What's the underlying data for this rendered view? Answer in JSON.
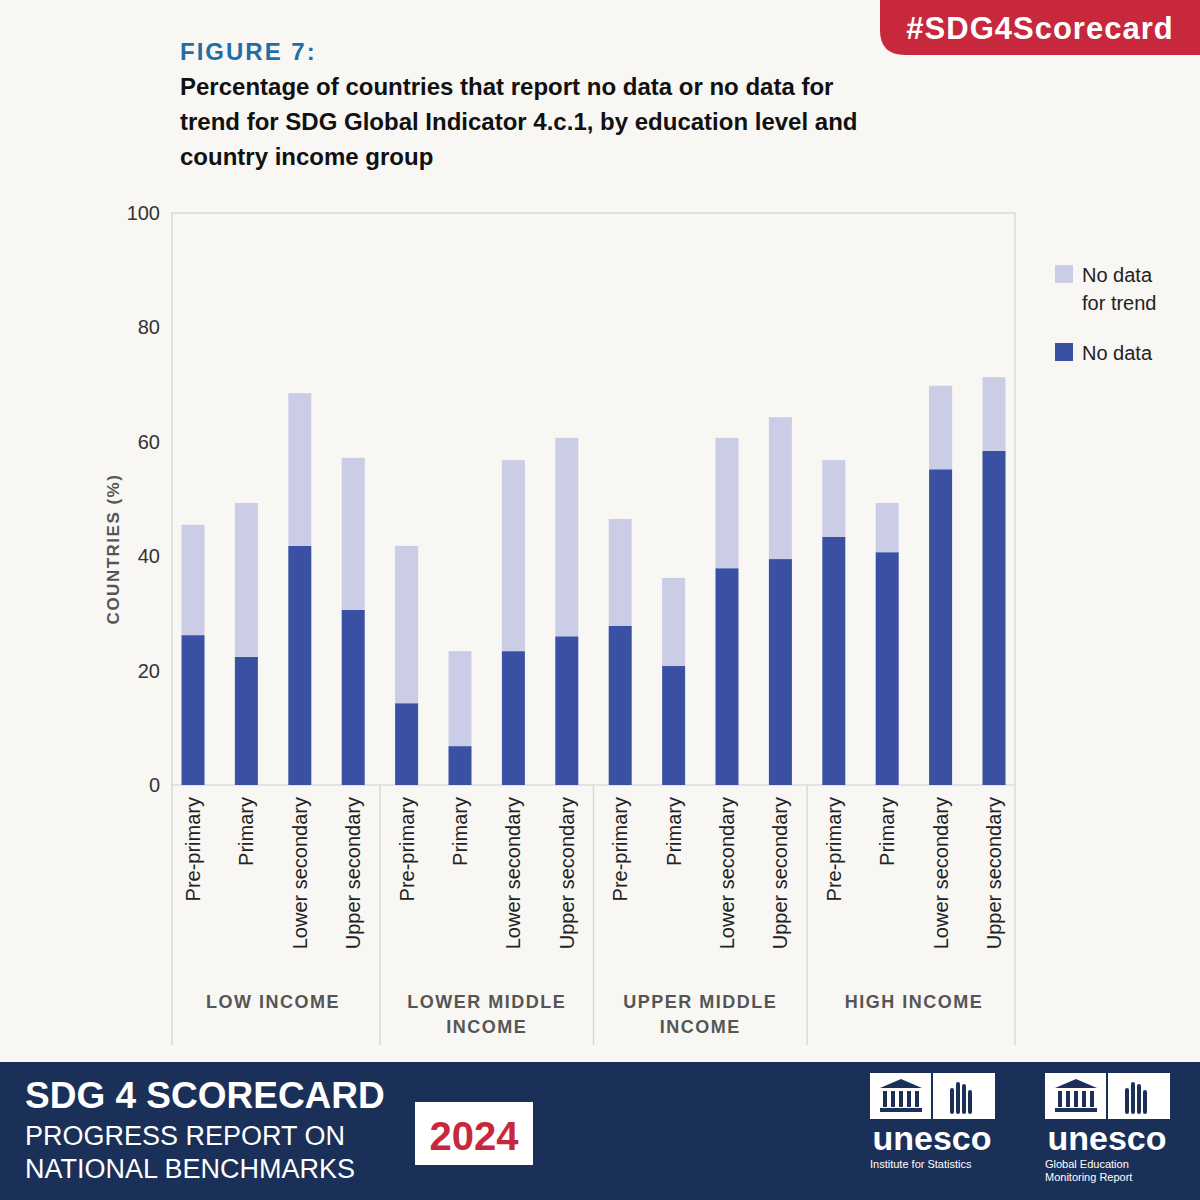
{
  "chart_data": {
    "type": "bar",
    "stacked": true,
    "title": "Percentage of countries that report no data or no data for trend for SDG Global Indicator 4.c.1, by education level and country income group",
    "y_label": "COUNTRIES (%)",
    "categories": [
      "Pre-primary",
      "Primary",
      "Lower secondary",
      "Upper secondary",
      "Pre-primary",
      "Primary",
      "Lower secondary",
      "Upper secondary",
      "Pre-primary",
      "Primary",
      "Lower secondary",
      "Upper secondary",
      "Pre-primary",
      "Primary",
      "Lower secondary",
      "Upper secondary"
    ],
    "groups": [
      "LOW INCOME",
      "LOWER MIDDLE INCOME",
      "UPPER MIDDLE INCOME",
      "HIGH INCOME"
    ],
    "series": [
      {
        "name": "No data",
        "color": "#3a50a2",
        "values": [
          26.2,
          22.4,
          41.8,
          30.6,
          14.3,
          6.8,
          23.4,
          26,
          27.8,
          20.8,
          37.9,
          39.5,
          43.4,
          40.7,
          55.2,
          58.4
        ]
      },
      {
        "name": "No data for trend",
        "color": "#cbcde7",
        "values": [
          19.3,
          26.9,
          26.7,
          26.6,
          27.5,
          16.6,
          33.4,
          34.7,
          18.7,
          15.4,
          22.8,
          24.8,
          13.4,
          8.6,
          14.6,
          12.9
        ]
      }
    ],
    "ylim": [
      0,
      100
    ],
    "yticks": [
      0,
      20,
      40,
      60,
      80,
      100
    ],
    "grid": false,
    "legend": "right",
    "annotations": {
      "figure_label": "FIGURE 7:",
      "hashtag": "#SDG4Scorecard",
      "footer_title": "SDG 4 SCORECARD",
      "footer_lines": [
        "PROGRESS REPORT ON",
        "NATIONAL BENCHMARKS"
      ],
      "year": "2024",
      "logos": [
        {
          "name": "unesco",
          "caption": [
            "Institute for Statistics"
          ]
        },
        {
          "name": "unesco",
          "caption": [
            "Global Education",
            "Monitoring Report"
          ]
        }
      ]
    }
  }
}
